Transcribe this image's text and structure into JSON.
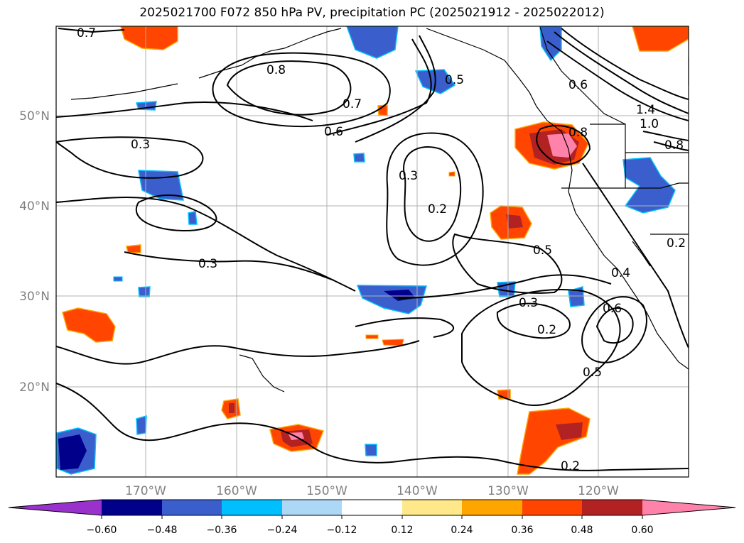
{
  "title": "2025021700 F072 850 hPa PV, precipitation PC (2025021912 - 2025022012)",
  "map": {
    "lat_labels": [
      "50°N",
      "40°N",
      "30°N",
      "20°N"
    ],
    "lon_labels": [
      "170°W",
      "160°W",
      "150°W",
      "140°W",
      "130°W",
      "120°W"
    ],
    "contour_labels": [
      "0.7",
      "0.8",
      "0.7",
      "0.6",
      "0.5",
      "0.3",
      "0.3",
      "0.2",
      "0.3",
      "0.5",
      "0.3",
      "0.2",
      "0.6",
      "0.5",
      "0.2",
      "0.4",
      "0.2",
      "0.6",
      "0.8",
      "1.4",
      "1.0",
      "0.8"
    ]
  },
  "colorbar": {
    "ticks": [
      "−0.60",
      "−0.48",
      "−0.36",
      "−0.24",
      "−0.12",
      "0.12",
      "0.24",
      "0.36",
      "0.48",
      "0.60"
    ],
    "colors": [
      "#9932cc",
      "#00008b",
      "#3a5fcd",
      "#00bfff",
      "#add8f5",
      "#ffffff",
      "#ffe88a",
      "#ffa500",
      "#ff4500",
      "#b22222",
      "#ff82ab"
    ]
  }
}
